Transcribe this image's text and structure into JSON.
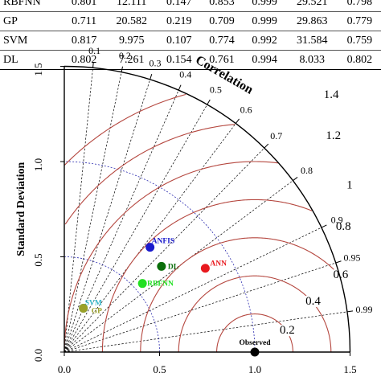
{
  "table": {
    "rows": [
      {
        "model": "RBFNN",
        "values": [
          "0.801",
          "12.111",
          "0.147",
          "0.853",
          "0.999",
          "29.521",
          "0.798"
        ]
      },
      {
        "model": "GP",
        "values": [
          "0.711",
          "20.582",
          "0.219",
          "0.709",
          "0.999",
          "29.863",
          "0.779"
        ]
      },
      {
        "model": "SVM",
        "values": [
          "0.817",
          "9.975",
          "0.107",
          "0.774",
          "0.992",
          "31.584",
          "0.759"
        ]
      },
      {
        "model": "DL",
        "values": [
          "0.802",
          "7.261",
          "0.154",
          "0.761",
          "0.994",
          "8.033",
          "0.802"
        ]
      }
    ]
  },
  "chart_data": {
    "type": "scatter",
    "subtype": "taylor-diagram",
    "ylabel": "Standard Deviation",
    "arc_label": "Correlation",
    "std_ticks": [
      "0.0",
      "0.5",
      "1.0",
      "1.5"
    ],
    "correlation_ticks": [
      "0.1",
      "0.2",
      "0.3",
      "0.4",
      "0.5",
      "0.6",
      "0.7",
      "0.8",
      "0.9",
      "0.95",
      "0.99"
    ],
    "rmsd_contours": [
      "0.2",
      "0.4",
      "0.6",
      "0.8",
      "1",
      "1.2",
      "1.4"
    ],
    "observed": {
      "name": "Observed",
      "std": 1.0,
      "color": "#000000"
    },
    "points": [
      {
        "name": "ANFIS",
        "x": 0.45,
        "y": 0.55,
        "color": "#1a1acc"
      },
      {
        "name": "DL",
        "x": 0.51,
        "y": 0.45,
        "color": "#0a6e0a"
      },
      {
        "name": "ANN",
        "x": 0.74,
        "y": 0.44,
        "color": "#e8191e"
      },
      {
        "name": "RBFNN",
        "x": 0.41,
        "y": 0.36,
        "color": "#22e022"
      },
      {
        "name": "SVM",
        "x": 0.1,
        "y": 0.23,
        "color": "#35b7c9"
      },
      {
        "name": "GP",
        "x": 0.1,
        "y": 0.23,
        "color": "#9aa028"
      }
    ],
    "colors": {
      "rmsd": "#b5473f",
      "std_arc": "#2c2cb0",
      "correlation_lines": "#000000"
    }
  }
}
